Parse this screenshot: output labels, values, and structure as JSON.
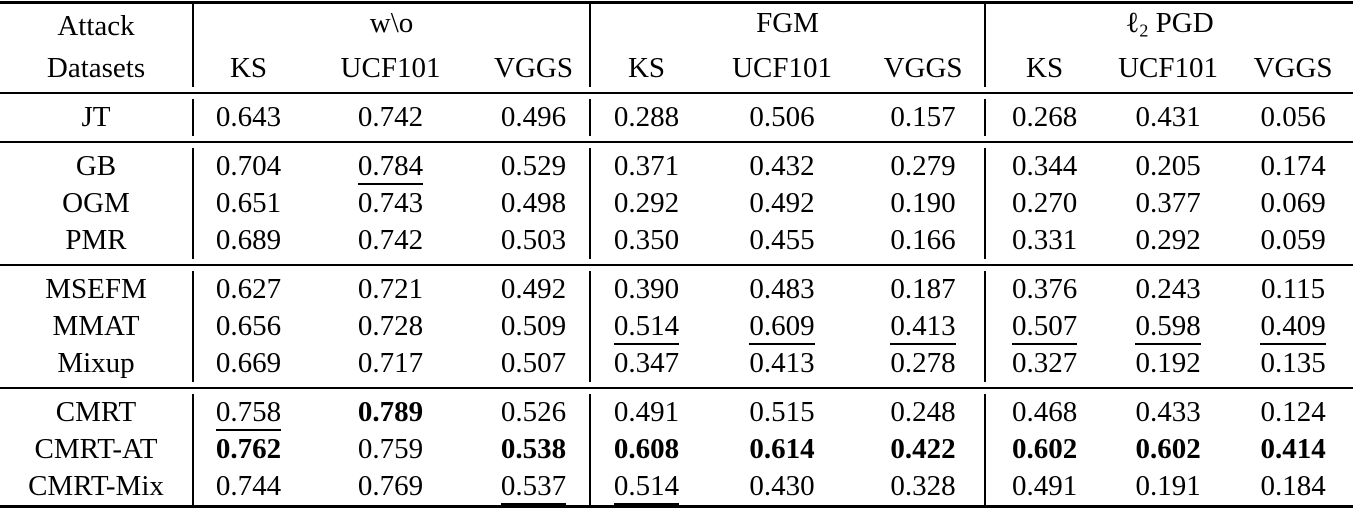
{
  "header": {
    "corner_line1": "Attack",
    "corner_line2": "Datasets",
    "groups": [
      {
        "prefix": "w\\o",
        "subscript": "",
        "suffix": "",
        "subcols": [
          "KS",
          "UCF101",
          "VGGS"
        ]
      },
      {
        "prefix": "FGM",
        "subscript": "",
        "suffix": "",
        "subcols": [
          "KS",
          "UCF101",
          "VGGS"
        ]
      },
      {
        "prefix": "ℓ",
        "subscript": "2",
        "suffix": " PGD",
        "subcols": [
          "KS",
          "UCF101",
          "VGGS"
        ]
      }
    ]
  },
  "format_legend": {
    "b": "bold (best)",
    "u": "underline (second best)"
  },
  "row_groups": [
    {
      "rows": [
        {
          "label": "JT",
          "cells": [
            {
              "v": "0.643",
              "f": ""
            },
            {
              "v": "0.742",
              "f": ""
            },
            {
              "v": "0.496",
              "f": ""
            },
            {
              "v": "0.288",
              "f": ""
            },
            {
              "v": "0.506",
              "f": ""
            },
            {
              "v": "0.157",
              "f": ""
            },
            {
              "v": "0.268",
              "f": ""
            },
            {
              "v": "0.431",
              "f": ""
            },
            {
              "v": "0.056",
              "f": ""
            }
          ]
        }
      ]
    },
    {
      "rows": [
        {
          "label": "GB",
          "cells": [
            {
              "v": "0.704",
              "f": ""
            },
            {
              "v": "0.784",
              "f": "u"
            },
            {
              "v": "0.529",
              "f": ""
            },
            {
              "v": "0.371",
              "f": ""
            },
            {
              "v": "0.432",
              "f": ""
            },
            {
              "v": "0.279",
              "f": ""
            },
            {
              "v": "0.344",
              "f": ""
            },
            {
              "v": "0.205",
              "f": ""
            },
            {
              "v": "0.174",
              "f": ""
            }
          ]
        },
        {
          "label": "OGM",
          "cells": [
            {
              "v": "0.651",
              "f": ""
            },
            {
              "v": "0.743",
              "f": ""
            },
            {
              "v": "0.498",
              "f": ""
            },
            {
              "v": "0.292",
              "f": ""
            },
            {
              "v": "0.492",
              "f": ""
            },
            {
              "v": "0.190",
              "f": ""
            },
            {
              "v": "0.270",
              "f": ""
            },
            {
              "v": "0.377",
              "f": ""
            },
            {
              "v": "0.069",
              "f": ""
            }
          ]
        },
        {
          "label": "PMR",
          "cells": [
            {
              "v": "0.689",
              "f": ""
            },
            {
              "v": "0.742",
              "f": ""
            },
            {
              "v": "0.503",
              "f": ""
            },
            {
              "v": "0.350",
              "f": ""
            },
            {
              "v": "0.455",
              "f": ""
            },
            {
              "v": "0.166",
              "f": ""
            },
            {
              "v": "0.331",
              "f": ""
            },
            {
              "v": "0.292",
              "f": ""
            },
            {
              "v": "0.059",
              "f": ""
            }
          ]
        }
      ]
    },
    {
      "rows": [
        {
          "label": "MSEFM",
          "cells": [
            {
              "v": "0.627",
              "f": ""
            },
            {
              "v": "0.721",
              "f": ""
            },
            {
              "v": "0.492",
              "f": ""
            },
            {
              "v": "0.390",
              "f": ""
            },
            {
              "v": "0.483",
              "f": ""
            },
            {
              "v": "0.187",
              "f": ""
            },
            {
              "v": "0.376",
              "f": ""
            },
            {
              "v": "0.243",
              "f": ""
            },
            {
              "v": "0.115",
              "f": ""
            }
          ]
        },
        {
          "label": "MMAT",
          "cells": [
            {
              "v": "0.656",
              "f": ""
            },
            {
              "v": "0.728",
              "f": ""
            },
            {
              "v": "0.509",
              "f": ""
            },
            {
              "v": "0.514",
              "f": "u"
            },
            {
              "v": "0.609",
              "f": "u"
            },
            {
              "v": "0.413",
              "f": "u"
            },
            {
              "v": "0.507",
              "f": "u"
            },
            {
              "v": "0.598",
              "f": "u"
            },
            {
              "v": "0.409",
              "f": "u"
            }
          ]
        },
        {
          "label": "Mixup",
          "cells": [
            {
              "v": "0.669",
              "f": ""
            },
            {
              "v": "0.717",
              "f": ""
            },
            {
              "v": "0.507",
              "f": ""
            },
            {
              "v": "0.347",
              "f": ""
            },
            {
              "v": "0.413",
              "f": ""
            },
            {
              "v": "0.278",
              "f": ""
            },
            {
              "v": "0.327",
              "f": ""
            },
            {
              "v": "0.192",
              "f": ""
            },
            {
              "v": "0.135",
              "f": ""
            }
          ]
        }
      ]
    },
    {
      "rows": [
        {
          "label": "CMRT",
          "cells": [
            {
              "v": "0.758",
              "f": "u"
            },
            {
              "v": "0.789",
              "f": "b"
            },
            {
              "v": "0.526",
              "f": ""
            },
            {
              "v": "0.491",
              "f": ""
            },
            {
              "v": "0.515",
              "f": ""
            },
            {
              "v": "0.248",
              "f": ""
            },
            {
              "v": "0.468",
              "f": ""
            },
            {
              "v": "0.433",
              "f": ""
            },
            {
              "v": "0.124",
              "f": ""
            }
          ]
        },
        {
          "label": "CMRT-AT",
          "cells": [
            {
              "v": "0.762",
              "f": "b"
            },
            {
              "v": "0.759",
              "f": ""
            },
            {
              "v": "0.538",
              "f": "b"
            },
            {
              "v": "0.608",
              "f": "b"
            },
            {
              "v": "0.614",
              "f": "b"
            },
            {
              "v": "0.422",
              "f": "b"
            },
            {
              "v": "0.602",
              "f": "b"
            },
            {
              "v": "0.602",
              "f": "b"
            },
            {
              "v": "0.414",
              "f": "b"
            }
          ]
        },
        {
          "label": "CMRT-Mix",
          "cells": [
            {
              "v": "0.744",
              "f": ""
            },
            {
              "v": "0.769",
              "f": ""
            },
            {
              "v": "0.537",
              "f": "u"
            },
            {
              "v": "0.514",
              "f": "u"
            },
            {
              "v": "0.430",
              "f": ""
            },
            {
              "v": "0.328",
              "f": ""
            },
            {
              "v": "0.491",
              "f": ""
            },
            {
              "v": "0.191",
              "f": ""
            },
            {
              "v": "0.184",
              "f": ""
            }
          ]
        }
      ]
    }
  ]
}
